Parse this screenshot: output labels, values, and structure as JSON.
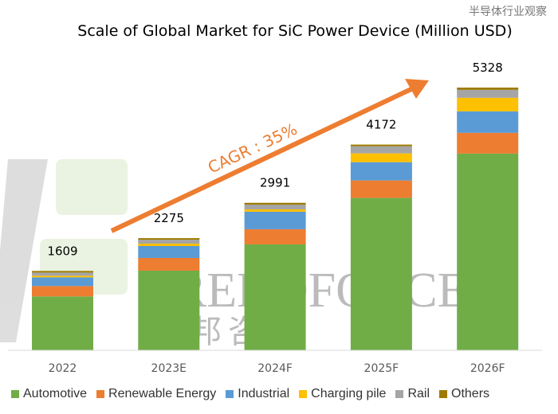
{
  "chart_data": {
    "type": "bar",
    "stacked": true,
    "title": "Scale of Global Market for SiC Power Device (Million USD)",
    "categories": [
      "2022",
      "2023E",
      "2024F",
      "2025F",
      "2026F"
    ],
    "totals": [
      1609,
      2275,
      2991,
      4172,
      5328
    ],
    "series": [
      {
        "name": "Automotive",
        "color": "#70AD47",
        "values": [
          1092,
          1615,
          2148,
          3090,
          3990
        ]
      },
      {
        "name": "Renewable Energy",
        "color": "#ED7D31",
        "values": [
          210,
          258,
          307,
          355,
          420
        ]
      },
      {
        "name": "Industrial",
        "color": "#5B9BD5",
        "values": [
          178,
          242,
          355,
          371,
          436
        ]
      },
      {
        "name": "Charging pile",
        "color": "#FFC000",
        "values": [
          32,
          48,
          48,
          178,
          275
        ]
      },
      {
        "name": "Rail",
        "color": "#A5A5A5",
        "values": [
          65,
          80,
          97,
          145,
          161
        ]
      },
      {
        "name": "Others",
        "color": "#9E7A00",
        "values": [
          32,
          32,
          36,
          33,
          46
        ]
      }
    ],
    "ylim": [
      0,
      5500
    ],
    "grid": false,
    "legend_position": "bottom",
    "annotation": "CAGR : 35%",
    "annotation_color": "#ED7D31"
  },
  "watermark": {
    "brand": "TRENDFORCE",
    "brand_cn": "集邦咨询",
    "source": "半导体行业观察"
  }
}
